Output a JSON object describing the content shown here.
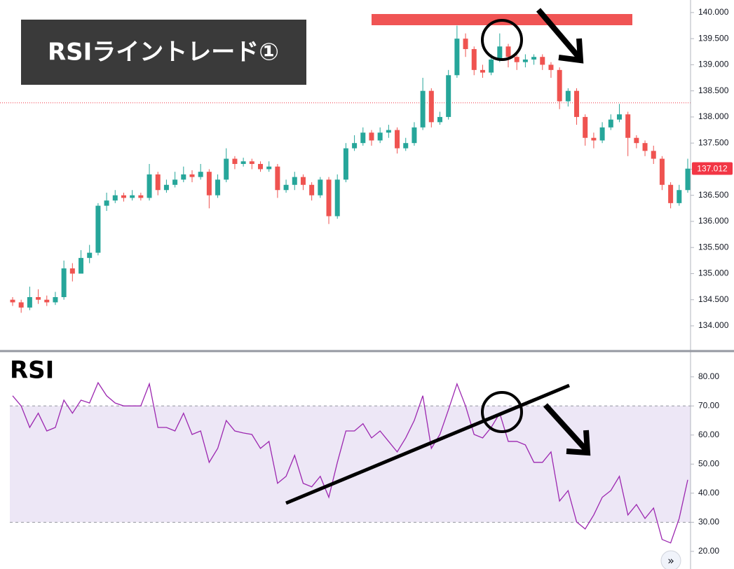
{
  "chart_data": [
    {
      "type": "candlestick",
      "title": "RSIライントレード①",
      "open": [
        134.5,
        134.45,
        134.35,
        134.55,
        134.5,
        134.45,
        134.55,
        135.1,
        135.0,
        135.3,
        135.4,
        136.3,
        136.4,
        136.5,
        136.45,
        136.5,
        136.45,
        136.9,
        136.6,
        136.7,
        136.8,
        136.9,
        136.85,
        136.95,
        136.5,
        136.8,
        137.2,
        137.1,
        137.15,
        137.1,
        137.0,
        137.05,
        136.6,
        136.7,
        136.85,
        136.7,
        136.5,
        136.8,
        136.1,
        136.8,
        137.4,
        137.5,
        137.7,
        137.55,
        137.7,
        137.75,
        137.4,
        137.5,
        137.8,
        138.5,
        137.9,
        138.0,
        138.8,
        139.5,
        139.3,
        138.9,
        138.85,
        139.1,
        139.35,
        139.15,
        139.05,
        139.1,
        139.15,
        139.0,
        138.9,
        138.3,
        138.5,
        138.0,
        137.6,
        137.55,
        137.8,
        137.95,
        138.05,
        137.6,
        137.5,
        137.35,
        137.2,
        136.7,
        136.35,
        136.6
      ],
      "high": [
        134.55,
        134.5,
        134.75,
        134.7,
        134.58,
        134.65,
        135.25,
        135.2,
        135.45,
        135.55,
        136.35,
        136.55,
        136.6,
        136.55,
        136.6,
        136.55,
        137.1,
        136.95,
        136.8,
        136.95,
        137.05,
        136.98,
        137.1,
        137.0,
        136.9,
        137.4,
        137.25,
        137.22,
        137.2,
        137.15,
        137.15,
        137.1,
        136.8,
        136.95,
        136.9,
        136.75,
        136.85,
        136.85,
        136.9,
        137.5,
        137.65,
        137.8,
        137.75,
        137.8,
        137.85,
        137.8,
        137.6,
        137.9,
        138.75,
        138.55,
        138.1,
        138.9,
        139.75,
        139.6,
        139.35,
        139.0,
        139.2,
        139.6,
        139.4,
        139.2,
        139.2,
        139.2,
        139.2,
        139.05,
        138.95,
        138.55,
        138.55,
        138.05,
        137.7,
        137.9,
        138.05,
        138.25,
        138.1,
        137.65,
        137.55,
        137.45,
        137.25,
        136.75,
        136.7,
        137.2
      ],
      "low": [
        134.38,
        134.25,
        134.3,
        134.42,
        134.38,
        134.4,
        134.5,
        134.85,
        135.0,
        135.2,
        135.35,
        136.2,
        136.35,
        136.38,
        136.4,
        136.4,
        136.4,
        136.5,
        136.55,
        136.65,
        136.75,
        136.75,
        136.8,
        136.25,
        136.45,
        136.75,
        137.0,
        137.05,
        137.0,
        136.95,
        136.95,
        136.45,
        136.55,
        136.6,
        136.6,
        136.4,
        136.45,
        135.95,
        136.05,
        136.75,
        137.35,
        137.45,
        137.45,
        137.5,
        137.6,
        137.3,
        137.35,
        137.45,
        137.75,
        137.8,
        137.85,
        137.95,
        138.75,
        139.15,
        138.8,
        138.75,
        138.8,
        139.05,
        138.95,
        138.9,
        138.95,
        139.0,
        138.9,
        138.75,
        138.15,
        138.2,
        137.85,
        137.45,
        137.4,
        137.5,
        137.75,
        137.9,
        137.25,
        137.4,
        137.25,
        137.1,
        136.6,
        136.25,
        136.3,
        136.55
      ],
      "close": [
        134.45,
        134.35,
        134.55,
        134.5,
        134.45,
        134.55,
        135.1,
        135.0,
        135.3,
        135.4,
        136.3,
        136.4,
        136.5,
        136.45,
        136.5,
        136.45,
        136.9,
        136.6,
        136.7,
        136.8,
        136.9,
        136.85,
        136.95,
        136.5,
        136.8,
        137.2,
        137.1,
        137.15,
        137.1,
        137.0,
        137.05,
        136.6,
        136.7,
        136.85,
        136.7,
        136.5,
        136.8,
        136.1,
        136.8,
        137.4,
        137.5,
        137.7,
        137.55,
        137.7,
        137.75,
        137.4,
        137.5,
        137.8,
        138.5,
        137.9,
        138.0,
        138.8,
        139.5,
        139.3,
        138.9,
        138.85,
        139.1,
        139.35,
        139.15,
        139.05,
        139.1,
        139.15,
        139.0,
        138.9,
        138.3,
        138.5,
        138.0,
        137.6,
        137.55,
        137.8,
        137.95,
        138.05,
        137.6,
        137.5,
        137.35,
        137.2,
        136.7,
        136.35,
        136.6,
        137.01
      ],
      "up_color": "#26a69a",
      "down_color": "#ef5350",
      "ylim": [
        133.53,
        140.24
      ],
      "yticks": [
        {
          "value": 134,
          "label": "134.000"
        },
        {
          "value": 134.5,
          "label": "134.500"
        },
        {
          "value": 135,
          "label": "135.000"
        },
        {
          "value": 135.5,
          "label": "135.500"
        },
        {
          "value": 136,
          "label": "136.000"
        },
        {
          "value": 136.5,
          "label": "136.500"
        },
        {
          "value": 137,
          "label": "137.000"
        },
        {
          "value": 137.5,
          "label": "137.500"
        },
        {
          "value": 138,
          "label": "138.000"
        },
        {
          "value": 138.5,
          "label": "138.500"
        },
        {
          "value": 139,
          "label": "139.000"
        },
        {
          "value": 139.5,
          "label": "139.500"
        },
        {
          "value": 140,
          "label": "140.000"
        }
      ],
      "reference_line": {
        "value": 138.27,
        "color": "#f23645"
      },
      "last_price": 137.012,
      "last_price_color": "#f23645"
    },
    {
      "type": "line",
      "title": "RSI",
      "values": [
        73.5,
        70,
        62.6,
        67.5,
        61.4,
        62.6,
        72,
        67.5,
        72,
        71,
        78,
        73.5,
        71,
        70,
        70,
        70,
        77.6,
        62.6,
        62.6,
        61.4,
        67.5,
        60.2,
        61.4,
        50.6,
        55.4,
        65,
        61.4,
        60.7,
        60.2,
        55.4,
        57.8,
        43.4,
        45.8,
        53,
        43.4,
        42.2,
        45.8,
        38.6,
        50.6,
        61.4,
        61.4,
        63.9,
        59,
        61.4,
        57.8,
        54.2,
        59,
        65,
        73.5,
        55.4,
        60.2,
        68.7,
        77.6,
        70,
        60.2,
        59,
        62.6,
        67.5,
        57.8,
        57.8,
        56.6,
        50.6,
        50.6,
        54.2,
        37.3,
        40.9,
        30.1,
        27.7,
        32.5,
        38.6,
        40.9,
        45.8,
        32.5,
        36.1,
        31.3,
        34.9,
        24.1,
        22.9,
        31.3,
        44.6
      ],
      "color": "#9c27b0",
      "band": [
        30,
        70
      ],
      "band_color": "#7e57c2",
      "ylim": [
        14.9,
        87.9
      ],
      "yticks": [
        {
          "value": 20,
          "label": "20.00"
        },
        {
          "value": 30,
          "label": "30.00"
        },
        {
          "value": 40,
          "label": "40.00"
        },
        {
          "value": 50,
          "label": "50.00"
        },
        {
          "value": 60,
          "label": "60.00"
        },
        {
          "value": 70,
          "label": "70.00"
        },
        {
          "value": 80,
          "label": "80.00"
        }
      ]
    }
  ],
  "controls": {
    "scroll_right": "»"
  }
}
